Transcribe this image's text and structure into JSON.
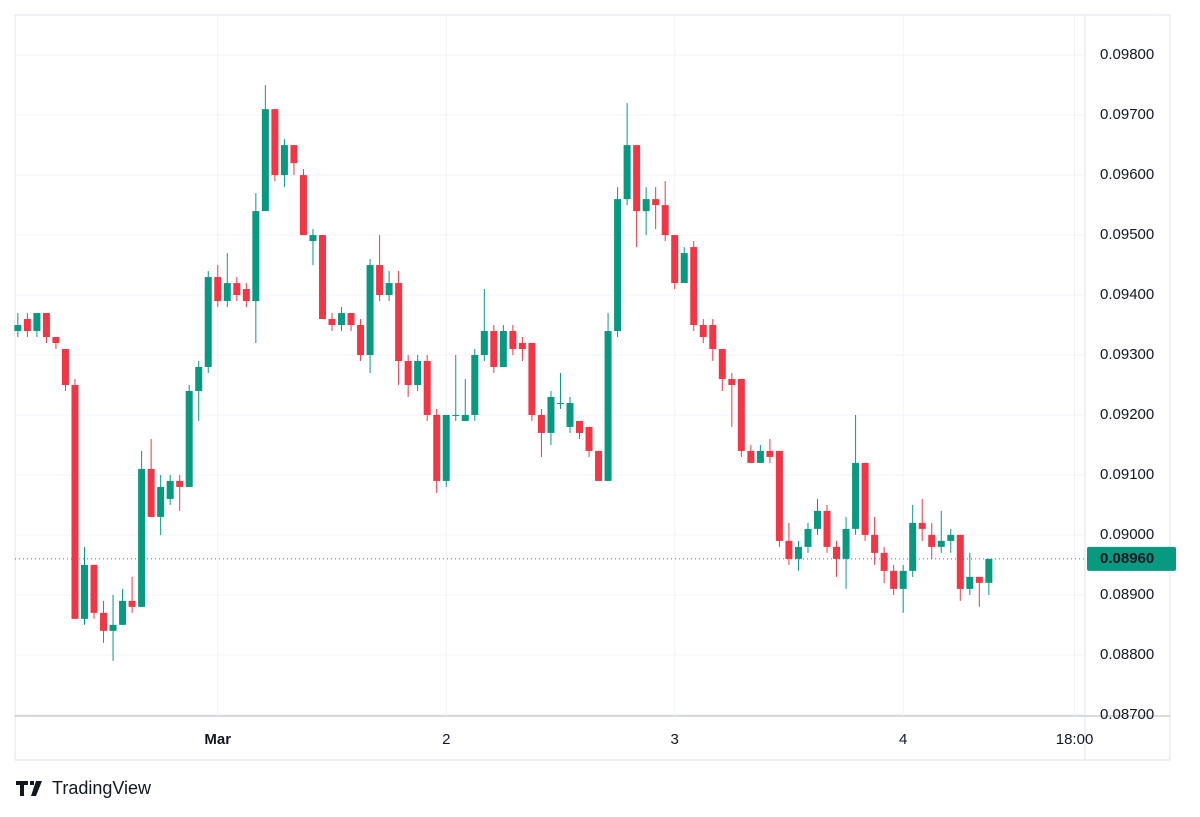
{
  "chart_data": {
    "type": "candlestick",
    "x": [
      -21,
      -20,
      -19,
      -18,
      -17,
      -16,
      -15,
      -14,
      -13,
      -12,
      -11,
      -10,
      -9,
      -8,
      -7,
      -6,
      -5,
      -4,
      -3,
      -2,
      -1,
      0,
      1,
      2,
      3,
      4,
      5,
      6,
      7,
      8,
      9,
      10,
      11,
      12,
      13,
      14,
      15,
      16,
      17,
      18,
      19,
      20,
      21,
      22,
      23,
      24,
      25,
      26,
      27,
      28,
      29,
      30,
      31,
      32,
      33,
      34,
      35,
      36,
      37,
      38,
      39,
      40,
      41,
      42,
      43,
      44,
      45,
      46,
      47,
      48,
      49,
      50,
      51,
      52,
      53,
      54,
      55,
      56,
      57,
      58,
      59,
      60,
      61,
      62,
      63,
      64,
      65,
      66,
      67,
      68,
      69,
      70,
      71,
      72,
      73,
      74,
      75,
      76,
      77,
      78,
      79,
      80,
      81
    ],
    "open": [
      0.0934,
      0.0936,
      0.0934,
      0.0937,
      0.0933,
      0.0931,
      0.0925,
      0.0886,
      0.0895,
      0.0887,
      0.0884,
      0.0885,
      0.0889,
      0.0888,
      0.0911,
      0.0903,
      0.0906,
      0.0909,
      0.0908,
      0.0924,
      0.0928,
      0.0943,
      0.0939,
      0.0942,
      0.0941,
      0.0939,
      0.0954,
      0.0971,
      0.096,
      0.0965,
      0.096,
      0.0949,
      0.095,
      0.0936,
      0.0935,
      0.0937,
      0.0935,
      0.093,
      0.0945,
      0.094,
      0.0942,
      0.0929,
      0.0925,
      0.0929,
      0.092,
      0.0909,
      0.092,
      0.0919,
      0.092,
      0.093,
      0.0934,
      0.0928,
      0.0934,
      0.0932,
      0.0932,
      0.092,
      0.0917,
      0.0922,
      0.0918,
      0.0919,
      0.0918,
      0.0914,
      0.0909,
      0.0934,
      0.0956,
      0.0965,
      0.0954,
      0.0956,
      0.0955,
      0.095,
      0.0942,
      0.0948,
      0.0935,
      0.0935,
      0.0931,
      0.0926,
      0.0926,
      0.0914,
      0.0912,
      0.0914,
      0.0914,
      0.0899,
      0.0896,
      0.0898,
      0.0901,
      0.0904,
      0.0898,
      0.0896,
      0.0901,
      0.0912,
      0.09,
      0.0897,
      0.0894,
      0.0891,
      0.0894,
      0.0902,
      0.09,
      0.0898,
      0.0899,
      0.09,
      0.0891,
      0.0893,
      0.0892
    ],
    "high": [
      0.0937,
      0.0937,
      0.0937,
      0.0937,
      0.0933,
      0.0931,
      0.0926,
      0.0898,
      0.0895,
      0.0889,
      0.089,
      0.0891,
      0.0893,
      0.0914,
      0.0916,
      0.091,
      0.091,
      0.091,
      0.0925,
      0.0929,
      0.0944,
      0.0945,
      0.0947,
      0.0943,
      0.0942,
      0.0957,
      0.0975,
      0.0971,
      0.0966,
      0.0965,
      0.0961,
      0.0951,
      0.095,
      0.0937,
      0.0938,
      0.0937,
      0.0936,
      0.0946,
      0.095,
      0.0944,
      0.0944,
      0.093,
      0.093,
      0.093,
      0.0921,
      0.092,
      0.093,
      0.0926,
      0.0931,
      0.0941,
      0.0935,
      0.0935,
      0.0935,
      0.0933,
      0.0932,
      0.0921,
      0.0924,
      0.0927,
      0.0923,
      0.0919,
      0.0918,
      0.0914,
      0.0937,
      0.0958,
      0.0972,
      0.0965,
      0.0958,
      0.0958,
      0.0959,
      0.095,
      0.0948,
      0.0949,
      0.0936,
      0.0936,
      0.0931,
      0.0927,
      0.0926,
      0.0915,
      0.0915,
      0.0916,
      0.0914,
      0.0902,
      0.0899,
      0.0902,
      0.0906,
      0.0905,
      0.0899,
      0.0903,
      0.092,
      0.0912,
      0.0903,
      0.0898,
      0.0895,
      0.0895,
      0.0905,
      0.0906,
      0.0902,
      0.0904,
      0.0901,
      0.09,
      0.0897,
      0.0893,
      0.0896
    ],
    "low": [
      0.0933,
      0.0933,
      0.0933,
      0.0932,
      0.0931,
      0.0924,
      0.0886,
      0.0885,
      0.0886,
      0.0882,
      0.0879,
      0.0885,
      0.0887,
      0.0888,
      0.0903,
      0.09,
      0.0905,
      0.0904,
      0.0908,
      0.0919,
      0.0927,
      0.0938,
      0.0938,
      0.0939,
      0.0938,
      0.0932,
      0.0954,
      0.0959,
      0.0958,
      0.096,
      0.095,
      0.0945,
      0.0936,
      0.0934,
      0.0934,
      0.0934,
      0.0929,
      0.0927,
      0.0939,
      0.0939,
      0.0925,
      0.0923,
      0.0924,
      0.0919,
      0.0907,
      0.0908,
      0.0919,
      0.0919,
      0.0919,
      0.0929,
      0.0927,
      0.0928,
      0.093,
      0.0929,
      0.0919,
      0.0913,
      0.0915,
      0.0921,
      0.0917,
      0.0916,
      0.0913,
      0.0909,
      0.0909,
      0.0933,
      0.0955,
      0.0948,
      0.095,
      0.0951,
      0.0949,
      0.0941,
      0.0942,
      0.0934,
      0.0932,
      0.0929,
      0.0924,
      0.0918,
      0.0913,
      0.0912,
      0.0912,
      0.0912,
      0.0898,
      0.0895,
      0.0894,
      0.0897,
      0.09,
      0.0897,
      0.0893,
      0.0891,
      0.09,
      0.0899,
      0.0895,
      0.0892,
      0.089,
      0.0887,
      0.0893,
      0.0899,
      0.0896,
      0.0897,
      0.0897,
      0.0889,
      0.089,
      0.0888,
      0.089
    ],
    "close": [
      0.0935,
      0.0934,
      0.0937,
      0.0933,
      0.0932,
      0.0925,
      0.0886,
      0.0895,
      0.0887,
      0.0884,
      0.0885,
      0.0889,
      0.0888,
      0.0911,
      0.0903,
      0.0908,
      0.0909,
      0.0908,
      0.0924,
      0.0928,
      0.0943,
      0.0939,
      0.0942,
      0.094,
      0.0939,
      0.0954,
      0.0971,
      0.096,
      0.0965,
      0.0962,
      0.095,
      0.095,
      0.0936,
      0.0935,
      0.0937,
      0.0935,
      0.093,
      0.0945,
      0.094,
      0.0942,
      0.0929,
      0.0925,
      0.0929,
      0.092,
      0.0909,
      0.092,
      0.092,
      0.092,
      0.093,
      0.0934,
      0.0928,
      0.0934,
      0.0931,
      0.0931,
      0.092,
      0.0917,
      0.0923,
      0.0922,
      0.0922,
      0.0917,
      0.0914,
      0.0909,
      0.0934,
      0.0956,
      0.0965,
      0.0954,
      0.0956,
      0.0955,
      0.095,
      0.0942,
      0.0947,
      0.0935,
      0.0933,
      0.0931,
      0.0926,
      0.0925,
      0.0914,
      0.0912,
      0.0914,
      0.0913,
      0.0899,
      0.0896,
      0.0898,
      0.0901,
      0.0904,
      0.0898,
      0.0896,
      0.0901,
      0.0912,
      0.09,
      0.0897,
      0.0894,
      0.0891,
      0.0894,
      0.0902,
      0.0901,
      0.0898,
      0.0899,
      0.09,
      0.0891,
      0.0893,
      0.0892,
      0.0896
    ],
    "up_color": "#089981",
    "down_color": "#f23645",
    "xlim": [
      -21.3,
      91.1
    ],
    "xticks": [
      {
        "value": 0,
        "label": "Mar"
      },
      {
        "value": 24,
        "label": "2"
      },
      {
        "value": 48,
        "label": "3"
      },
      {
        "value": 72,
        "label": "4"
      },
      {
        "value": 90,
        "label": "18:00"
      }
    ],
    "ylim": [
      0.08698,
      0.09867
    ],
    "yticks": [
      {
        "value": 0.087,
        "label": "0.08700"
      },
      {
        "value": 0.088,
        "label": "0.08800"
      },
      {
        "value": 0.089,
        "label": "0.08900"
      },
      {
        "value": 0.09,
        "label": "0.09000"
      },
      {
        "value": 0.091,
        "label": "0.09100"
      },
      {
        "value": 0.092,
        "label": "0.09200"
      },
      {
        "value": 0.093,
        "label": "0.09300"
      },
      {
        "value": 0.094,
        "label": "0.09400"
      },
      {
        "value": 0.095,
        "label": "0.09500"
      },
      {
        "value": 0.096,
        "label": "0.09600"
      },
      {
        "value": 0.097,
        "label": "0.09700"
      },
      {
        "value": 0.098,
        "label": "0.09800"
      }
    ],
    "last_price": {
      "value": 0.0896,
      "label": "0.08960"
    },
    "grid": true,
    "brand": "TradingView"
  }
}
